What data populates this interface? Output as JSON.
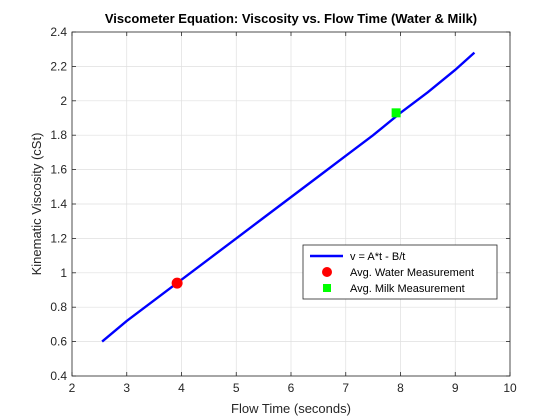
{
  "chart_data": {
    "type": "line",
    "title": "Viscometer Equation: Viscosity vs. Flow Time (Water & Milk)",
    "xlabel": "Flow Time (seconds)",
    "ylabel": "Kinematic Viscosity (cSt)",
    "xlim": [
      2,
      10
    ],
    "ylim": [
      0.4,
      2.4
    ],
    "xticks": [
      2,
      3,
      4,
      5,
      6,
      7,
      8,
      9,
      10
    ],
    "yticks": [
      0.4,
      0.6,
      0.8,
      1,
      1.2,
      1.4,
      1.6,
      1.8,
      2,
      2.2,
      2.4
    ],
    "xtick_labels": [
      "2",
      "3",
      "4",
      "5",
      "6",
      "7",
      "8",
      "9",
      "10"
    ],
    "ytick_labels": [
      "0.4",
      "0.6",
      "0.8",
      "1",
      "1.2",
      "1.4",
      "1.6",
      "1.8",
      "2",
      "2.2",
      "2.4"
    ],
    "grid": true,
    "legend_position": "lower-right",
    "series": [
      {
        "name": "v = A*t - B/t",
        "kind": "line",
        "color": "#0000ff",
        "x": [
          2.55,
          3.0,
          3.5,
          4.0,
          4.5,
          5.0,
          5.5,
          6.0,
          6.5,
          7.0,
          7.5,
          8.0,
          8.5,
          9.0,
          9.35
        ],
        "y": [
          0.6,
          0.72,
          0.84,
          0.96,
          1.08,
          1.2,
          1.32,
          1.44,
          1.56,
          1.68,
          1.8,
          1.93,
          2.05,
          2.18,
          2.28
        ]
      },
      {
        "name": "Avg. Water Measurement",
        "kind": "marker",
        "marker": "circle",
        "color": "#ff0000",
        "x": [
          3.92
        ],
        "y": [
          0.94
        ]
      },
      {
        "name": "Avg. Milk Measurement",
        "kind": "marker",
        "marker": "square",
        "color": "#00ff00",
        "x": [
          7.92
        ],
        "y": [
          1.93
        ]
      }
    ]
  }
}
